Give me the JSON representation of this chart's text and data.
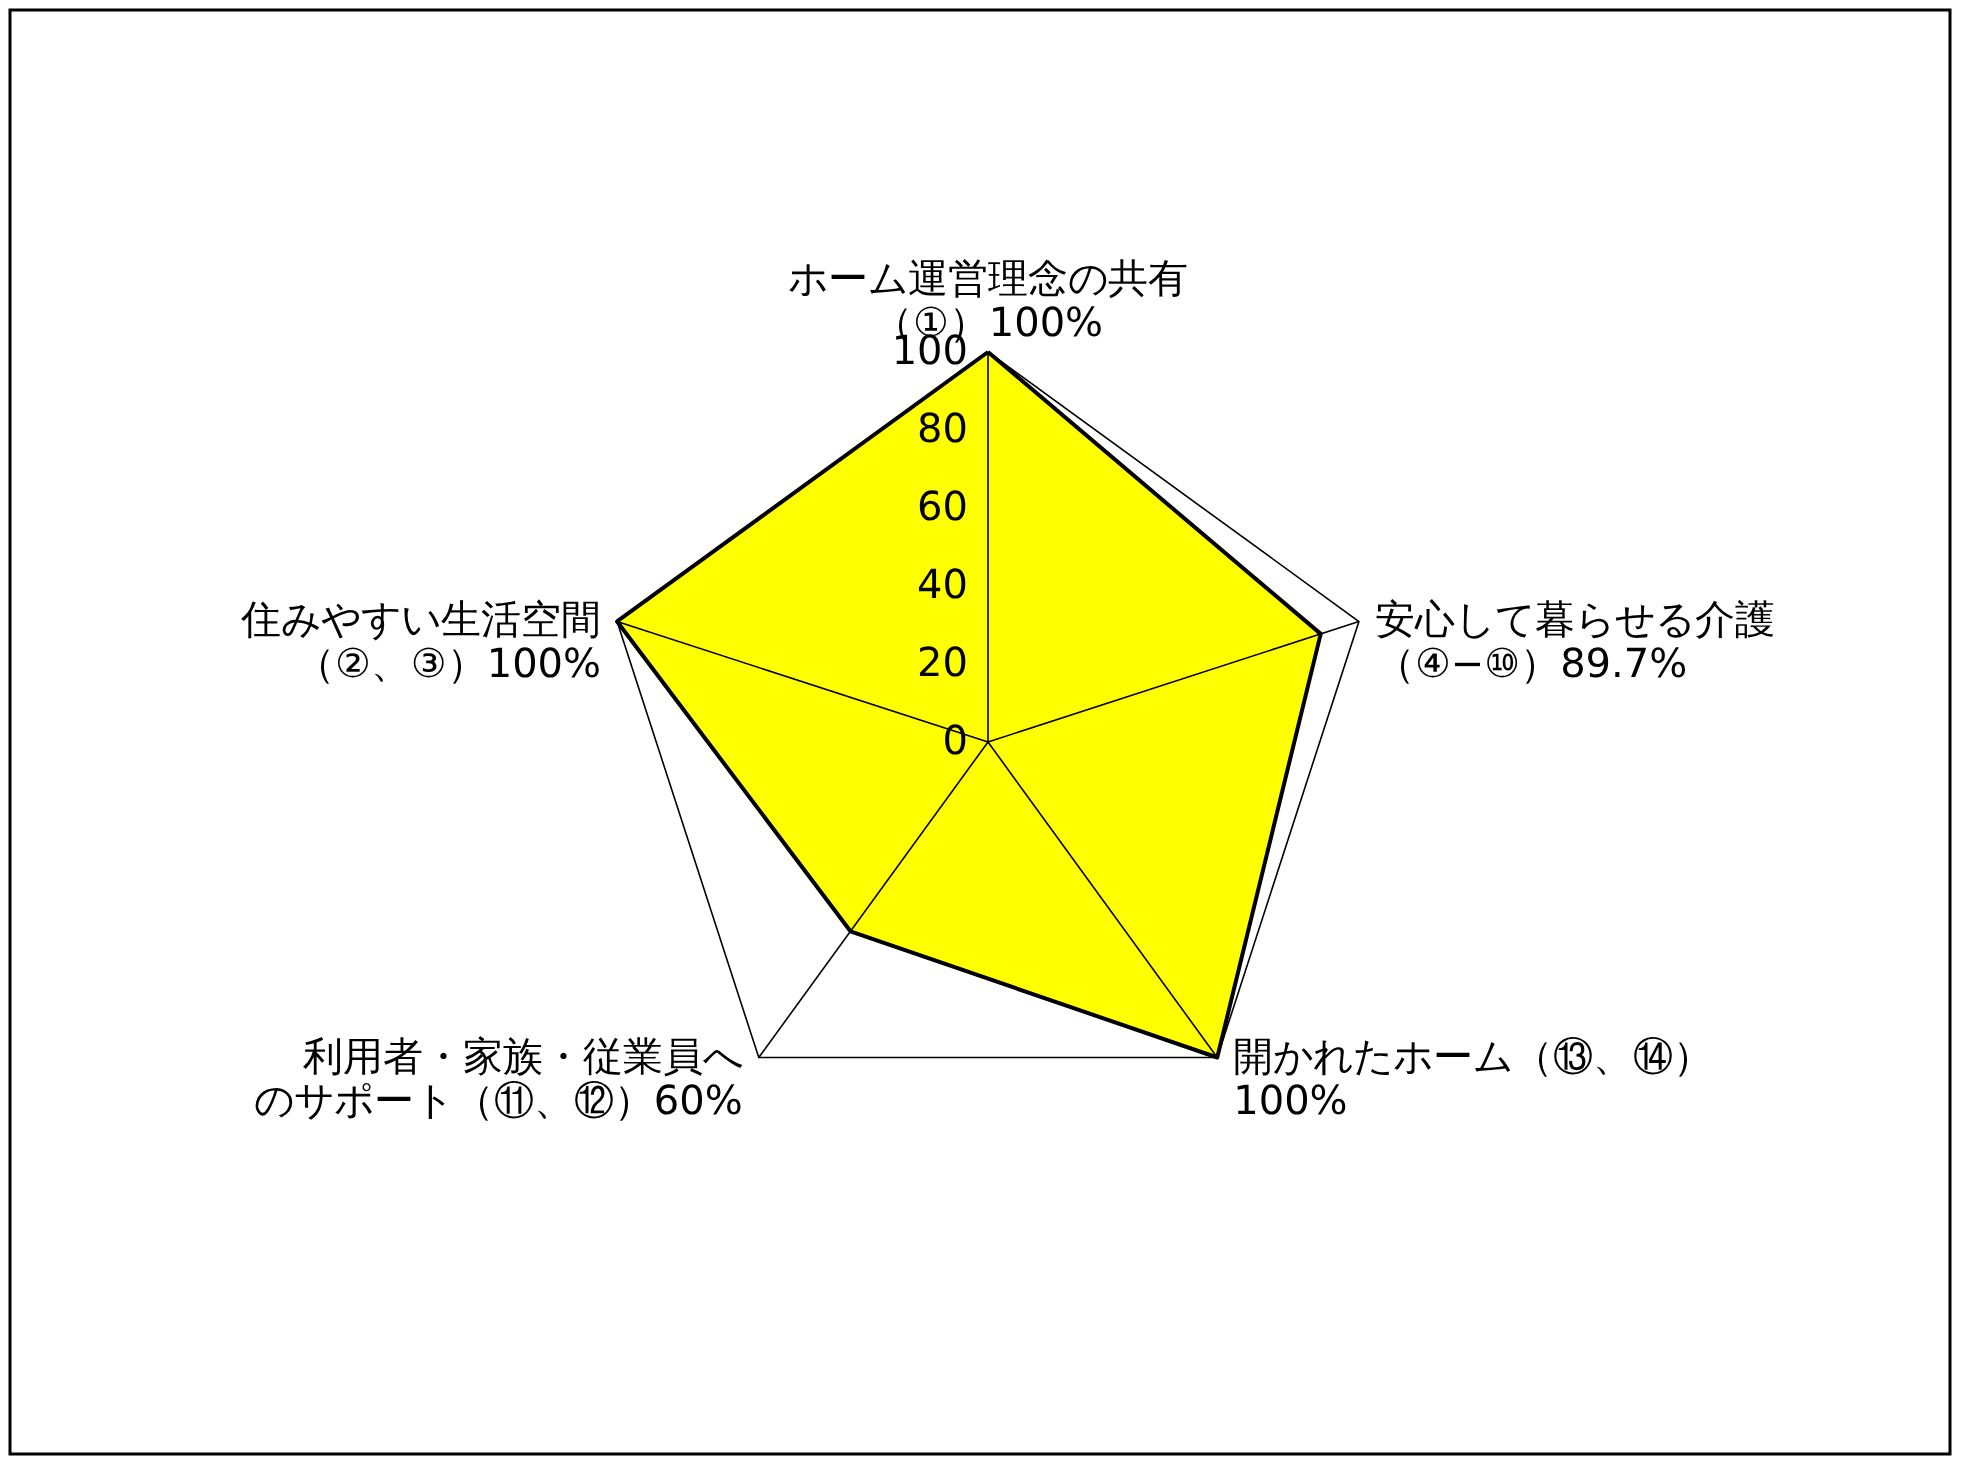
{
  "chart_data": {
    "type": "radar",
    "categories": [
      "ホーム運営理念の共有（①）100%",
      "安心して暮らせる介護（④−⑩）89.7%",
      "開かれたホーム（⑬、⑭）100%",
      "利用者・家族・従業員へのサポート（⑪、⑫）60%",
      "住みやすい生活空間（②、③）100%"
    ],
    "series": [
      {
        "color": "#ffff00",
        "values": [
          100,
          89.7,
          100,
          60,
          100
        ]
      }
    ],
    "ylim": [
      0,
      100
    ],
    "yticks": [
      0,
      20,
      40,
      60,
      80,
      100
    ]
  }
}
